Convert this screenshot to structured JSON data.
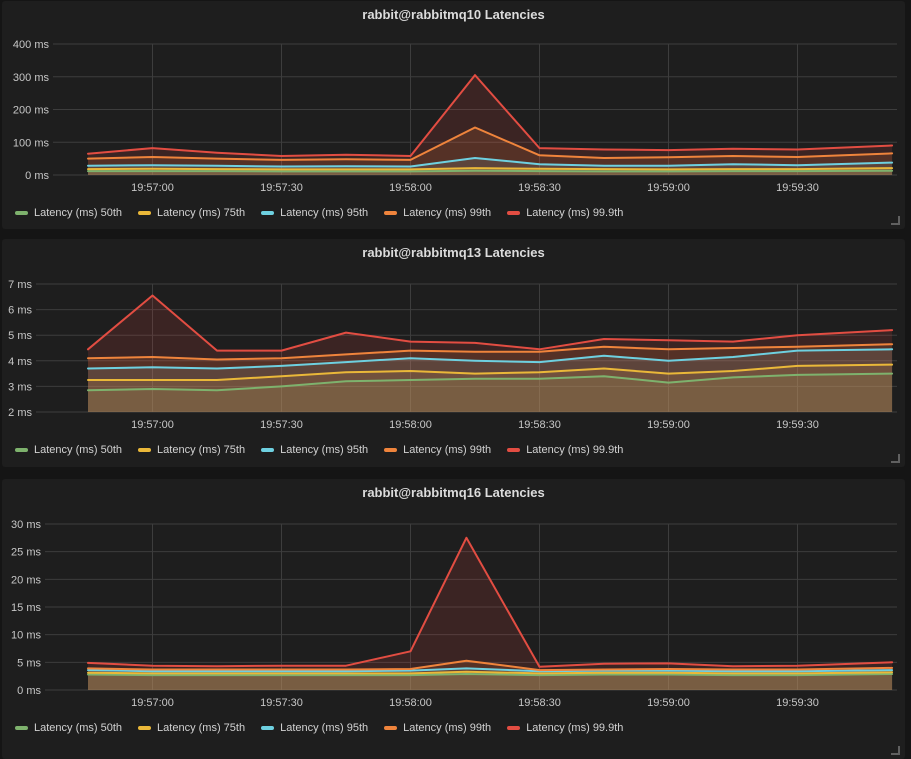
{
  "dashboard": {
    "bg_color": "#151515",
    "panel_bg_color": "#1e1e1e",
    "grid_color": "#3d3d3d",
    "axis_text_color": "#c7c7c7",
    "title_text_color": "#dcdcdc",
    "legend_text_color": "#d2d2d2"
  },
  "chart_data": [
    {
      "type": "area",
      "title": "rabbit@rabbitmq10 Latencies",
      "unit": "ms",
      "ylim": [
        0,
        400
      ],
      "y_ticks": [
        0,
        100,
        200,
        300,
        400
      ],
      "y_tick_labels": [
        "0 ms",
        "100 ms",
        "200 ms",
        "300 ms",
        "400 ms"
      ],
      "x_tick_labels": [
        "19:57:00",
        "19:57:30",
        "19:58:00",
        "19:58:30",
        "19:59:00",
        "19:59:30"
      ],
      "x_tick_t": [
        15,
        45,
        75,
        105,
        135,
        165
      ],
      "grid": true,
      "legend_position": "bottom-left",
      "x_t": [
        0,
        15,
        30,
        45,
        60,
        75,
        90,
        105,
        120,
        135,
        150,
        165,
        187
      ],
      "series": [
        {
          "name": "Latency (ms) 50th",
          "color": "#7EB26D",
          "values": [
            12,
            12,
            12,
            11,
            11,
            11,
            13,
            12,
            11,
            11,
            12,
            12,
            13
          ]
        },
        {
          "name": "Latency (ms) 75th",
          "color": "#EAB839",
          "values": [
            18,
            19,
            18,
            17,
            17,
            17,
            21,
            19,
            18,
            17,
            18,
            18,
            21
          ]
        },
        {
          "name": "Latency (ms) 95th",
          "color": "#6ED0E0",
          "values": [
            28,
            30,
            28,
            26,
            27,
            26,
            52,
            33,
            28,
            28,
            33,
            30,
            38
          ]
        },
        {
          "name": "Latency (ms) 99th",
          "color": "#EF843C",
          "values": [
            50,
            55,
            50,
            46,
            48,
            46,
            145,
            60,
            52,
            54,
            58,
            55,
            66
          ]
        },
        {
          "name": "Latency (ms) 99.9th",
          "color": "#E24D42",
          "values": [
            65,
            82,
            68,
            58,
            62,
            58,
            305,
            82,
            78,
            76,
            80,
            78,
            90
          ]
        }
      ]
    },
    {
      "type": "area",
      "title": "rabbit@rabbitmq13 Latencies",
      "unit": "ms",
      "ylim": [
        2,
        7
      ],
      "y_ticks": [
        2,
        3,
        4,
        5,
        6,
        7
      ],
      "y_tick_labels": [
        "2 ms",
        "3 ms",
        "4 ms",
        "5 ms",
        "6 ms",
        "7 ms"
      ],
      "x_tick_labels": [
        "19:57:00",
        "19:57:30",
        "19:58:00",
        "19:58:30",
        "19:59:00",
        "19:59:30"
      ],
      "x_tick_t": [
        15,
        45,
        75,
        105,
        135,
        165
      ],
      "grid": true,
      "legend_position": "bottom-left",
      "x_t": [
        0,
        15,
        30,
        45,
        60,
        75,
        90,
        105,
        120,
        135,
        150,
        165,
        187
      ],
      "series": [
        {
          "name": "Latency (ms) 50th",
          "color": "#7EB26D",
          "values": [
            2.85,
            2.9,
            2.85,
            3.0,
            3.2,
            3.25,
            3.3,
            3.3,
            3.4,
            3.15,
            3.35,
            3.45,
            3.5
          ]
        },
        {
          "name": "Latency (ms) 75th",
          "color": "#EAB839",
          "values": [
            3.25,
            3.25,
            3.25,
            3.4,
            3.55,
            3.6,
            3.5,
            3.55,
            3.7,
            3.5,
            3.6,
            3.8,
            3.85
          ]
        },
        {
          "name": "Latency (ms) 95th",
          "color": "#6ED0E0",
          "values": [
            3.7,
            3.75,
            3.7,
            3.8,
            3.95,
            4.1,
            4.0,
            3.95,
            4.2,
            4.0,
            4.15,
            4.4,
            4.45
          ]
        },
        {
          "name": "Latency (ms) 99th",
          "color": "#EF843C",
          "values": [
            4.1,
            4.15,
            4.05,
            4.1,
            4.25,
            4.4,
            4.35,
            4.35,
            4.55,
            4.45,
            4.5,
            4.55,
            4.65
          ]
        },
        {
          "name": "Latency (ms) 99.9th",
          "color": "#E24D42",
          "values": [
            4.45,
            6.55,
            4.4,
            4.4,
            5.1,
            4.75,
            4.7,
            4.45,
            4.85,
            4.8,
            4.75,
            5.0,
            5.2
          ]
        }
      ]
    },
    {
      "type": "area",
      "title": "rabbit@rabbitmq16 Latencies",
      "unit": "ms",
      "ylim": [
        0,
        30
      ],
      "y_ticks": [
        0,
        5,
        10,
        15,
        20,
        25,
        30
      ],
      "y_tick_labels": [
        "0 ms",
        "5 ms",
        "10 ms",
        "15 ms",
        "20 ms",
        "25 ms",
        "30 ms"
      ],
      "x_tick_labels": [
        "19:57:00",
        "19:57:30",
        "19:58:00",
        "19:58:30",
        "19:59:00",
        "19:59:30"
      ],
      "x_tick_t": [
        15,
        45,
        75,
        105,
        135,
        165
      ],
      "grid": true,
      "legend_position": "bottom-left",
      "x_t": [
        0,
        15,
        30,
        45,
        60,
        75,
        88,
        105,
        120,
        135,
        150,
        165,
        187
      ],
      "series": [
        {
          "name": "Latency (ms) 50th",
          "color": "#7EB26D",
          "values": [
            2.8,
            2.7,
            2.7,
            2.7,
            2.7,
            2.7,
            2.9,
            2.7,
            2.8,
            2.8,
            2.7,
            2.7,
            2.9
          ]
        },
        {
          "name": "Latency (ms) 75th",
          "color": "#EAB839",
          "values": [
            3.1,
            3.0,
            3.0,
            3.0,
            3.0,
            3.0,
            3.3,
            3.0,
            3.1,
            3.1,
            3.0,
            3.0,
            3.2
          ]
        },
        {
          "name": "Latency (ms) 95th",
          "color": "#6ED0E0",
          "values": [
            3.6,
            3.4,
            3.4,
            3.4,
            3.4,
            3.5,
            3.9,
            3.4,
            3.5,
            3.5,
            3.4,
            3.4,
            3.6
          ]
        },
        {
          "name": "Latency (ms) 99th",
          "color": "#EF843C",
          "values": [
            3.9,
            3.7,
            3.7,
            3.7,
            3.7,
            3.8,
            5.3,
            3.6,
            3.7,
            3.8,
            3.7,
            3.7,
            4.0
          ]
        },
        {
          "name": "Latency (ms) 99.9th",
          "color": "#E24D42",
          "values": [
            4.9,
            4.4,
            4.3,
            4.4,
            4.4,
            7.0,
            27.5,
            4.2,
            4.75,
            4.8,
            4.3,
            4.4,
            5.0
          ]
        }
      ]
    }
  ]
}
